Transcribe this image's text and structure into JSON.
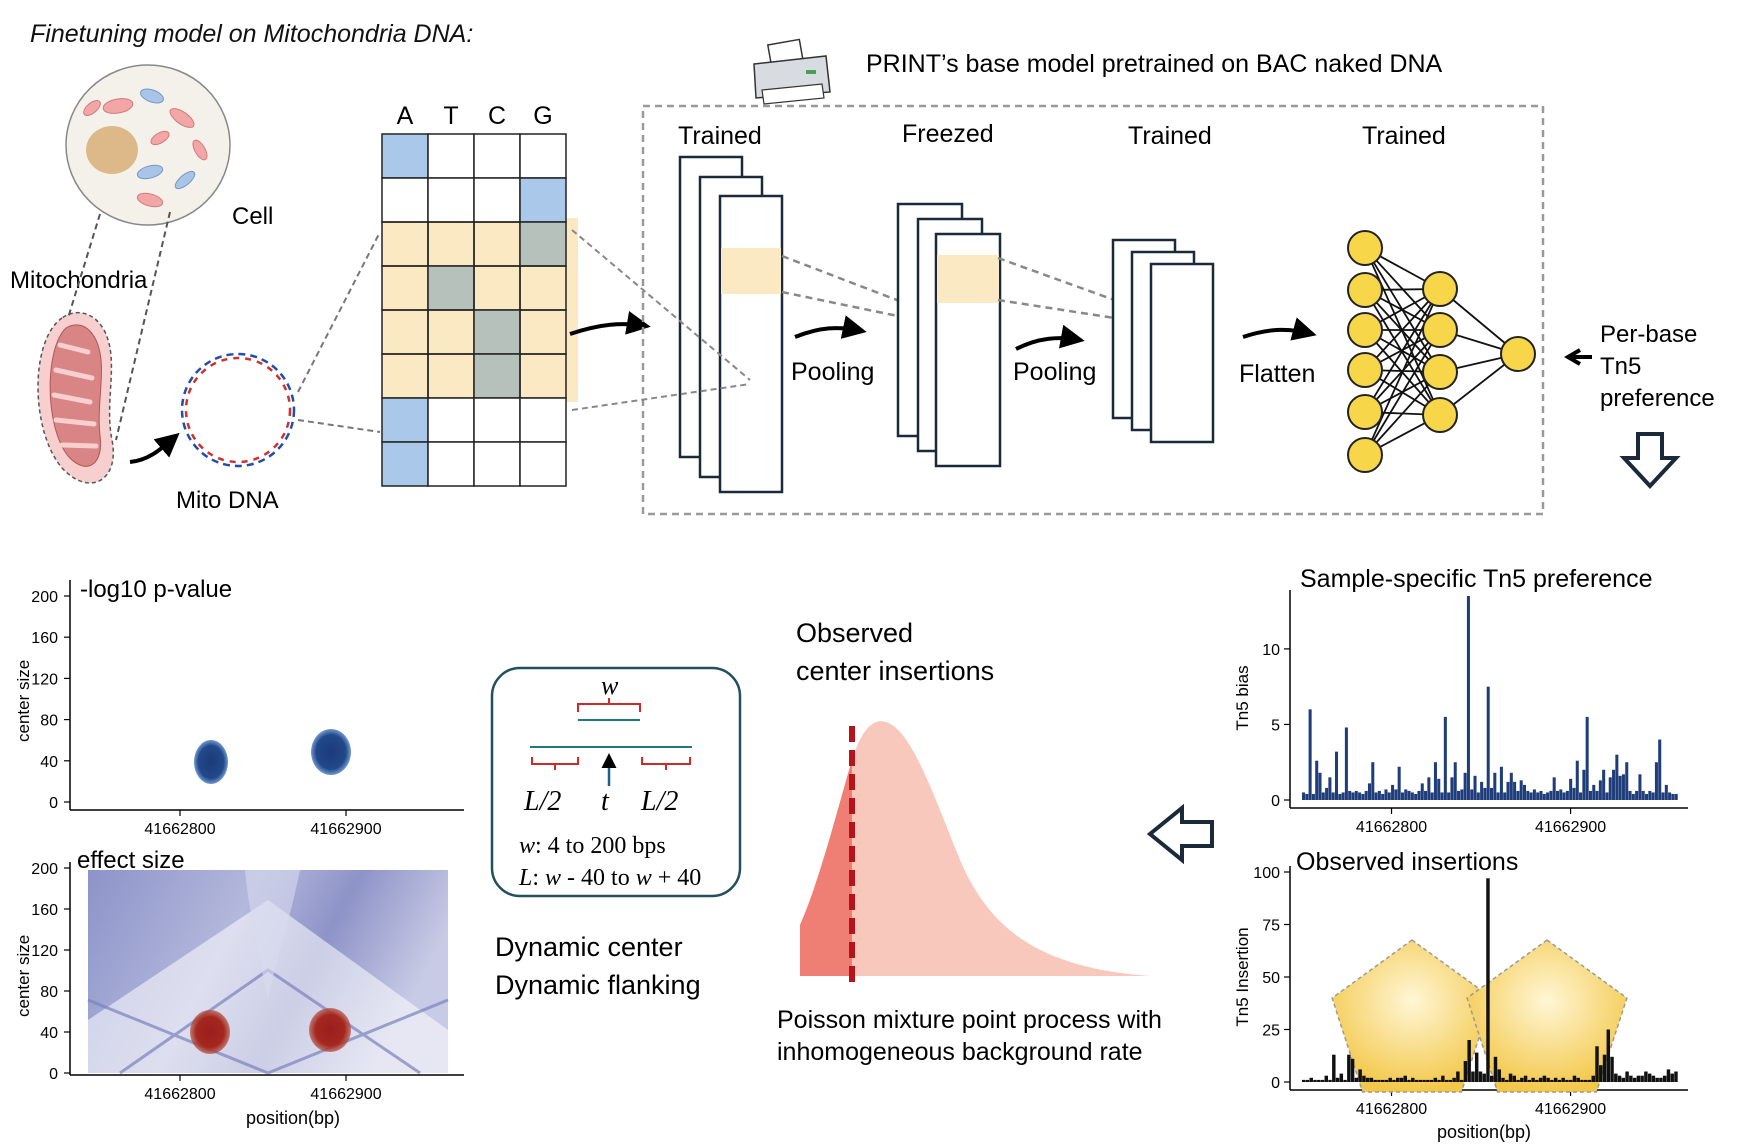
{
  "top": {
    "title": "Finetuning model on Mitochondria DNA:",
    "cell_label": "Cell",
    "mito_label": "Mitochondria",
    "mtdna_label": "Mito DNA",
    "base_model_title": "PRINT’s base model pretrained on BAC naked DNA",
    "onehot_bases": [
      "A",
      "T",
      "C",
      "G"
    ],
    "layer_states": [
      "Trained",
      "Freezed",
      "Trained",
      "Trained"
    ],
    "ops": [
      "Pooling",
      "Pooling",
      "Flatten"
    ],
    "output_label_lines": [
      "Per-base",
      "Tn5",
      "preference"
    ]
  },
  "colors": {
    "onehot_blue": "#a9c8ea",
    "highlight": "#fbe9c4",
    "onehot_gray": "#b7c1bc",
    "node_yellow": "#f7d64a",
    "bar_blue": "#1f3d7a",
    "bar_black": "#111111",
    "gamma_light": "#f9c8bd",
    "gamma_dark": "#ef7e74",
    "dashed_red": "#b5141b",
    "pentagon_yellow": "#f6cf55",
    "panel_border": "#244f5f"
  },
  "heat_pvalue": {
    "title": "-log10 p-value",
    "ylabel": "center size",
    "yticks": [
      "200",
      "160",
      "120",
      "80",
      "40",
      "0"
    ],
    "xticks": [
      "41662800",
      "41662900"
    ]
  },
  "heat_effect": {
    "title": "effect size",
    "ylabel": "center size",
    "xlabel": "position(bp)",
    "yticks": [
      "200",
      "160",
      "120",
      "80",
      "40",
      "0"
    ],
    "xticks": [
      "41662800",
      "41662900"
    ]
  },
  "window_panel": {
    "w_label": "w",
    "left_flank": "L/2",
    "center": "t",
    "right_flank": "L/2",
    "w_range_var": "w",
    "w_range": ": 4 to 200 bps",
    "L_range_var": "L",
    "L_range_mid": ": ",
    "L_range_w1": "w",
    "L_range_mid2": " - 40 to ",
    "L_range_w2": "w",
    "L_range_end": " + 40",
    "caption_lines": [
      "Dynamic center",
      "Dynamic flanking"
    ]
  },
  "observed_center": {
    "title_lines": [
      "Observed",
      "center insertions"
    ],
    "caption_lines": [
      "Poisson mixture point process with",
      "inhomogeneous background rate"
    ]
  },
  "chart_data": [
    {
      "type": "bar",
      "title": "Sample-specific Tn5 preference",
      "ylabel": "Tn5 bias",
      "xlabel": "",
      "yticks": [
        "0",
        "5",
        "10"
      ],
      "xticks": [
        "41662800",
        "41662900"
      ],
      "ylim": [
        0,
        13.5
      ],
      "x_range": [
        41662750,
        41662960
      ],
      "xtick_values": [
        41662800,
        41662900
      ],
      "values": [
        0.5,
        0.4,
        6,
        0.4,
        2.6,
        1.8,
        0.5,
        0.8,
        1.5,
        0.5,
        3.2,
        0.4,
        0.5,
        4.8,
        0.6,
        0.5,
        0.6,
        0.5,
        0.4,
        0.6,
        1.1,
        2.5,
        0.5,
        0.6,
        0.4,
        0.7,
        0.5,
        1,
        0.7,
        2.2,
        0.5,
        0.7,
        0.6,
        0.5,
        0.4,
        0.6,
        1.1,
        0.6,
        1.5,
        0.5,
        2.5,
        1.4,
        0.5,
        5.5,
        0.5,
        1.5,
        2.5,
        0.6,
        0.7,
        1.8,
        13.7,
        0.7,
        1.6,
        0.5,
        1.2,
        0.8,
        7.5,
        0.8,
        1.8,
        0.5,
        2.2,
        0.5,
        1.2,
        1.8,
        1.2,
        0.6,
        1.3,
        1,
        0.6,
        0.5,
        0.7,
        0.5,
        0.6,
        0.4,
        0.5,
        0.6,
        1.5,
        0.6,
        0.7,
        0.5,
        0.6,
        1.4,
        0.8,
        2.6,
        0.5,
        2,
        5.5,
        0.6,
        1,
        0.6,
        1.3,
        2,
        0.5,
        1.5,
        2,
        3,
        1.6,
        1.7,
        2.5,
        0.6,
        0.4,
        0.6,
        1.7,
        0.6,
        0.4,
        0.6,
        0.5,
        2.5,
        4,
        0.5,
        1,
        0.5,
        0.4,
        0.4
      ]
    },
    {
      "type": "bar",
      "title": "Observed insertions",
      "ylabel": "Tn5 Insertion",
      "xlabel": "position(bp)",
      "yticks": [
        "0",
        "25",
        "50",
        "75",
        "100"
      ],
      "xticks": [
        "41662800",
        "41662900"
      ],
      "ylim": [
        0,
        100
      ],
      "x_range": [
        41662750,
        41662960
      ],
      "xtick_values": [
        41662800,
        41662900
      ],
      "values": [
        1,
        1,
        2,
        1,
        1,
        1,
        3,
        1,
        13,
        2,
        4,
        1,
        13,
        11,
        2,
        6,
        3,
        2,
        2,
        1,
        1,
        1,
        1,
        2,
        1,
        2,
        2,
        3,
        1,
        2,
        1,
        1,
        1,
        1,
        1,
        2,
        1,
        3,
        1,
        1,
        2,
        5,
        1,
        10,
        20,
        5,
        14,
        5,
        4,
        97,
        3,
        12,
        6,
        2,
        1,
        4,
        3,
        1,
        2,
        3,
        1,
        2,
        1,
        2,
        3,
        2,
        1,
        2,
        1,
        2,
        1,
        1,
        3,
        2,
        1,
        1,
        1,
        3,
        17,
        8,
        13,
        25,
        12,
        4,
        3,
        2,
        5,
        3,
        2,
        3,
        3,
        5,
        4,
        3,
        2,
        2,
        3,
        6,
        4,
        5
      ]
    }
  ]
}
